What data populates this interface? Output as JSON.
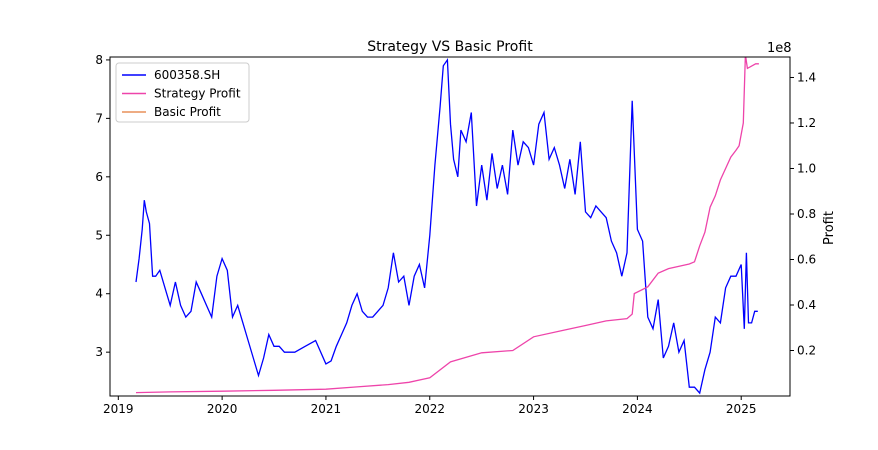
{
  "chart_data": {
    "type": "line",
    "title": "Strategy VS Basic Profit",
    "xlabel": "",
    "ylabel_left": "",
    "ylabel_right": "Profit",
    "right_axis_multiplier": "1e8",
    "xlim": [
      2018.92,
      2025.47
    ],
    "ylim_left": [
      2.25,
      8.05
    ],
    "ylim_right": [
      0,
      1.49
    ],
    "x_ticks": [
      2019,
      2020,
      2021,
      2022,
      2023,
      2024,
      2025
    ],
    "x_tick_labels": [
      "2019",
      "2020",
      "2021",
      "2022",
      "2023",
      "2024",
      "2025"
    ],
    "y_left_ticks": [
      3,
      4,
      5,
      6,
      7,
      8
    ],
    "y_left_tick_labels": [
      "3",
      "4",
      "5",
      "6",
      "7",
      "8"
    ],
    "y_right_ticks": [
      0.2,
      0.4,
      0.6,
      0.8,
      1.0,
      1.2,
      1.4
    ],
    "y_right_tick_labels": [
      "0.2",
      "0.4",
      "0.6",
      "0.8",
      "1.0",
      "1.2",
      "1.4"
    ],
    "grid": false,
    "legend_position": "top-left",
    "legend_entries": [
      "600358.SH",
      "Strategy Profit",
      "Basic Profit"
    ],
    "series": [
      {
        "name": "600358.SH",
        "axis": "left",
        "color": "#0000ff",
        "x": [
          2019.17,
          2019.2,
          2019.23,
          2019.25,
          2019.27,
          2019.3,
          2019.33,
          2019.36,
          2019.4,
          2019.45,
          2019.5,
          2019.55,
          2019.6,
          2019.65,
          2019.7,
          2019.75,
          2019.8,
          2019.85,
          2019.9,
          2019.95,
          2020.0,
          2020.05,
          2020.1,
          2020.15,
          2020.2,
          2020.25,
          2020.3,
          2020.35,
          2020.4,
          2020.45,
          2020.5,
          2020.55,
          2020.6,
          2020.7,
          2020.8,
          2020.9,
          2021.0,
          2021.05,
          2021.1,
          2021.15,
          2021.2,
          2021.25,
          2021.3,
          2021.35,
          2021.4,
          2021.45,
          2021.5,
          2021.55,
          2021.6,
          2021.65,
          2021.7,
          2021.75,
          2021.8,
          2021.85,
          2021.9,
          2021.95,
          2022.0,
          2022.05,
          2022.1,
          2022.13,
          2022.17,
          2022.2,
          2022.23,
          2022.27,
          2022.3,
          2022.35,
          2022.4,
          2022.45,
          2022.5,
          2022.55,
          2022.6,
          2022.65,
          2022.7,
          2022.75,
          2022.8,
          2022.85,
          2022.9,
          2022.95,
          2023.0,
          2023.05,
          2023.1,
          2023.15,
          2023.2,
          2023.25,
          2023.3,
          2023.35,
          2023.4,
          2023.45,
          2023.5,
          2023.55,
          2023.6,
          2023.65,
          2023.7,
          2023.75,
          2023.8,
          2023.85,
          2023.9,
          2023.95,
          2024.0,
          2024.05,
          2024.1,
          2024.15,
          2024.2,
          2024.25,
          2024.3,
          2024.35,
          2024.4,
          2024.45,
          2024.5,
          2024.55,
          2024.6,
          2024.65,
          2024.7,
          2024.75,
          2024.8,
          2024.85,
          2024.9,
          2024.95,
          2025.0,
          2025.03,
          2025.05,
          2025.07,
          2025.1,
          2025.13,
          2025.16
        ],
        "y": [
          4.2,
          4.6,
          5.1,
          5.6,
          5.4,
          5.2,
          4.3,
          4.3,
          4.4,
          4.1,
          3.8,
          4.2,
          3.8,
          3.6,
          3.7,
          4.2,
          4.0,
          3.8,
          3.6,
          4.3,
          4.6,
          4.4,
          3.6,
          3.8,
          3.5,
          3.2,
          2.9,
          2.6,
          2.9,
          3.3,
          3.1,
          3.1,
          3.0,
          3.0,
          3.1,
          3.2,
          2.8,
          2.85,
          3.1,
          3.3,
          3.5,
          3.8,
          4.0,
          3.7,
          3.6,
          3.6,
          3.7,
          3.8,
          4.1,
          4.7,
          4.2,
          4.3,
          3.8,
          4.3,
          4.5,
          4.1,
          5.0,
          6.2,
          7.2,
          7.9,
          8.0,
          6.9,
          6.3,
          6.0,
          6.8,
          6.6,
          7.1,
          5.5,
          6.2,
          5.6,
          6.4,
          5.8,
          6.2,
          5.7,
          6.8,
          6.2,
          6.6,
          6.5,
          6.2,
          6.9,
          7.1,
          6.3,
          6.5,
          6.2,
          5.8,
          6.3,
          5.7,
          6.6,
          5.4,
          5.3,
          5.5,
          5.4,
          5.3,
          4.9,
          4.7,
          4.3,
          4.7,
          7.3,
          5.1,
          4.9,
          3.6,
          3.4,
          3.9,
          2.9,
          3.1,
          3.5,
          3.0,
          3.2,
          2.4,
          2.4,
          2.3,
          2.7,
          3.0,
          3.6,
          3.5,
          4.1,
          4.3,
          4.3,
          4.5,
          3.4,
          4.7,
          3.5,
          3.5,
          3.7,
          3.7
        ]
      },
      {
        "name": "Strategy Profit",
        "axis": "right",
        "color": "#ee44aa",
        "x": [
          2019.17,
          2019.5,
          2020.0,
          2020.5,
          2021.0,
          2021.3,
          2021.6,
          2021.8,
          2022.0,
          2022.2,
          2022.5,
          2022.8,
          2023.0,
          2023.3,
          2023.5,
          2023.7,
          2023.9,
          2023.95,
          2023.97,
          2024.1,
          2024.2,
          2024.3,
          2024.5,
          2024.55,
          2024.6,
          2024.65,
          2024.7,
          2024.75,
          2024.8,
          2024.85,
          2024.9,
          2024.95,
          2024.98,
          2025.02,
          2025.04,
          2025.06,
          2025.1,
          2025.14,
          2025.17
        ],
        "y": [
          0.015,
          0.018,
          0.021,
          0.025,
          0.03,
          0.04,
          0.05,
          0.06,
          0.08,
          0.15,
          0.19,
          0.2,
          0.26,
          0.29,
          0.31,
          0.33,
          0.34,
          0.36,
          0.45,
          0.48,
          0.54,
          0.56,
          0.58,
          0.59,
          0.66,
          0.72,
          0.83,
          0.88,
          0.95,
          1.0,
          1.05,
          1.08,
          1.1,
          1.2,
          1.5,
          1.44,
          1.45,
          1.46,
          1.46
        ]
      },
      {
        "name": "Basic Profit",
        "axis": "right",
        "color": "#e8905a",
        "x": [],
        "y": []
      }
    ]
  }
}
